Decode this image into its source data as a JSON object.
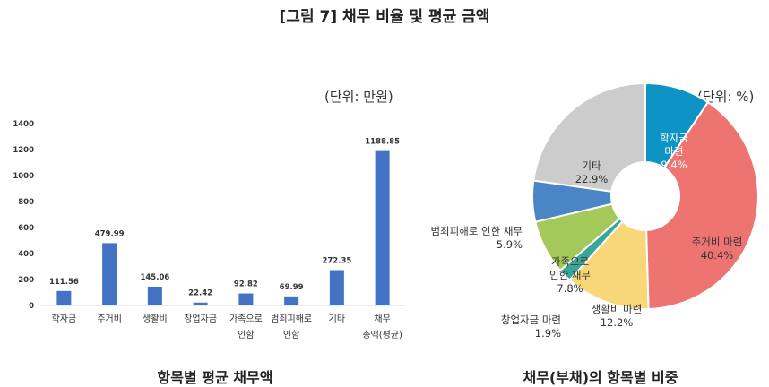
{
  "figure_title": "[그림 7] 채무 비율 및 평균 금액",
  "left_panel": {
    "unit": "(단위:  만원)",
    "caption": "항목별 평균 채무액"
  },
  "right_panel": {
    "unit": "(단위:  %)",
    "caption": "채무(부채)의 항목별 비중"
  },
  "colors": {
    "bar": "#4472C4",
    "pie": {
      "학자금 마련": "#0E94C4",
      "주거비 마련": "#EE7472",
      "생활비 마련": "#F7D777",
      "창업자금 마련": "#3AA699",
      "가족으로 인한 채무": "#A5C85A",
      "범죄피해로 인한 채무": "#4A86C5",
      "기타": "#CCCCCC"
    }
  },
  "chart_data": [
    {
      "type": "bar",
      "title": "항목별 평균 채무액",
      "unit": "(단위: 만원)",
      "categories": [
        "학자금",
        "주거비",
        "생활비",
        "창업자금",
        "가족으로 인함",
        "범죄피해로 인함",
        "기타",
        "채무 총액(평균)"
      ],
      "category_lines": [
        [
          "학자금"
        ],
        [
          "주거비"
        ],
        [
          "생활비"
        ],
        [
          "창업자금"
        ],
        [
          "가족으로",
          "인함"
        ],
        [
          "범죄피해로",
          "인함"
        ],
        [
          "기타"
        ],
        [
          "채무",
          "총액(평균)"
        ]
      ],
      "values": [
        111.56,
        479.99,
        145.06,
        22.42,
        92.82,
        69.99,
        272.35,
        1188.85
      ],
      "value_labels": [
        "111.56",
        "479.99",
        "145.06",
        "22.42",
        "92.82",
        "69.99",
        "272.35",
        "1188.85"
      ],
      "yticks": [
        "0",
        "200",
        "400",
        "600",
        "800",
        "1000",
        "1200",
        "1400"
      ],
      "ylim": [
        0,
        1400
      ],
      "xlabel": "",
      "ylabel": "",
      "grid": false,
      "legend": null
    },
    {
      "type": "pie",
      "donut": true,
      "title": "채무(부채)의 항목별 비중",
      "unit": "(단위: %)",
      "labels": [
        "학자금 마련",
        "주거비 마련",
        "생활비 마련",
        "창업자금 마련",
        "가족으로 인한 채무",
        "범죄피해로 인한 채무",
        "기타"
      ],
      "values": [
        9.4,
        40.4,
        12.2,
        1.9,
        7.8,
        5.9,
        22.9
      ],
      "value_labels": [
        "9.4%",
        "40.4%",
        "12.2%",
        "1.9%",
        "7.8%",
        "5.9%",
        "22.9%"
      ],
      "label_lines": [
        [
          "학자금",
          "마련",
          "9.4%"
        ],
        [
          "주거비 마련",
          "40.4%"
        ],
        [
          "생활비 마련",
          "12.2%"
        ],
        [
          "창업자금 마련",
          "1.9%"
        ],
        [
          "가족으로",
          "인한 채무",
          "7.8%"
        ],
        [
          "범죄피해로 인한 채무",
          "5.9%"
        ],
        [
          "기타",
          "22.9%"
        ]
      ],
      "start_angle": "12 o'clock",
      "direction": "clockwise"
    }
  ]
}
